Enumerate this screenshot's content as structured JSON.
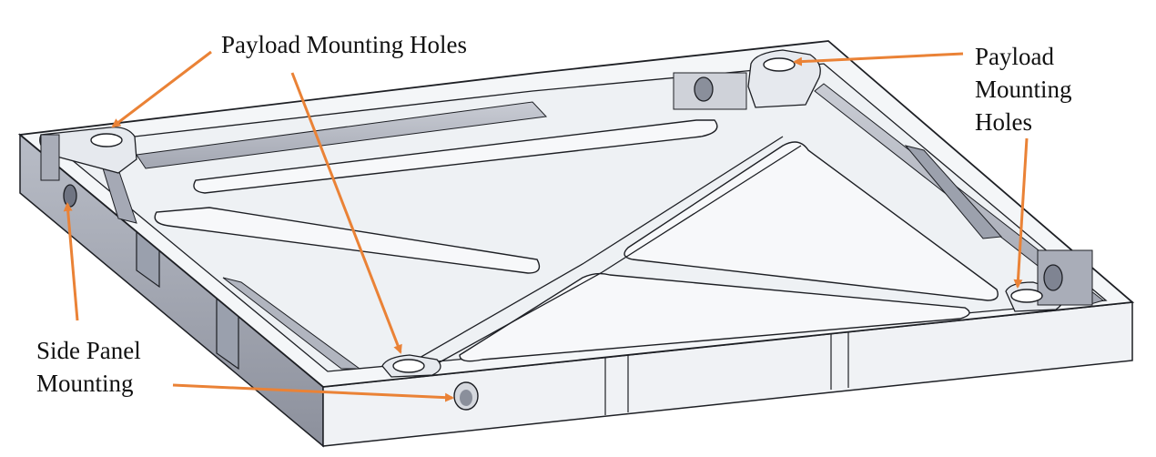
{
  "colors": {
    "background": "#ffffff",
    "plate_top": "#f4f6f8",
    "wall_shade": "#9ea3b0",
    "wall_dark": "#7f8492",
    "outline": "#1d1f24",
    "arrow": "#ea8236",
    "text": "#111111"
  },
  "callouts": {
    "top": {
      "label": "Payload Mounting Holes"
    },
    "right": {
      "lines": [
        "Payload",
        "Mounting",
        "Holes"
      ]
    },
    "left": {
      "lines": [
        "Side Panel",
        "Mounting"
      ]
    }
  },
  "parts": [
    "payload-mounting-hole",
    "side-panel-mounting-hole",
    "lightening-pocket",
    "diagonal-rib",
    "frame-wall"
  ]
}
